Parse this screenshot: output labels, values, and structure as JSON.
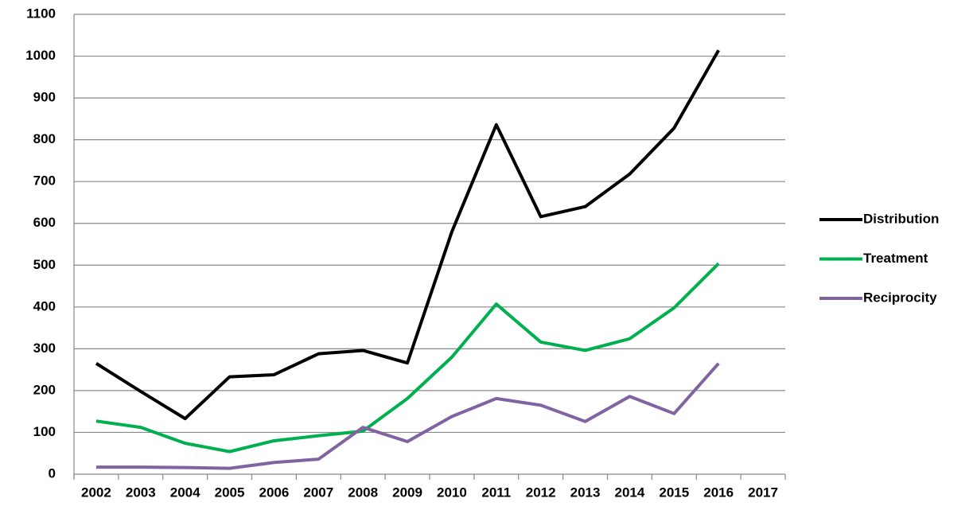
{
  "chart_data": {
    "type": "line",
    "categories": [
      "2002",
      "2003",
      "2004",
      "2005",
      "2006",
      "2007",
      "2008",
      "2009",
      "2010",
      "2011",
      "2012",
      "2013",
      "2014",
      "2015",
      "2016",
      "2017"
    ],
    "series": [
      {
        "name": "Distribution",
        "color": "#000000",
        "values": [
          265,
          198,
          133,
          233,
          238,
          288,
          296,
          266,
          580,
          836,
          616,
          640,
          718,
          828,
          1014,
          null
        ]
      },
      {
        "name": "Treatment",
        "color": "#00b050",
        "values": [
          127,
          112,
          74,
          54,
          80,
          92,
          103,
          181,
          280,
          407,
          316,
          296,
          324,
          398,
          504,
          null
        ]
      },
      {
        "name": "Reciprocity",
        "color": "#8064a2",
        "values": [
          17,
          17,
          16,
          14,
          28,
          36,
          112,
          78,
          138,
          181,
          165,
          126,
          186,
          145,
          265,
          null
        ]
      }
    ],
    "ylim": [
      0,
      1100
    ],
    "yticks": [
      0,
      100,
      200,
      300,
      400,
      500,
      600,
      700,
      800,
      900,
      1000,
      1100
    ],
    "grid": true,
    "legend": "right"
  }
}
